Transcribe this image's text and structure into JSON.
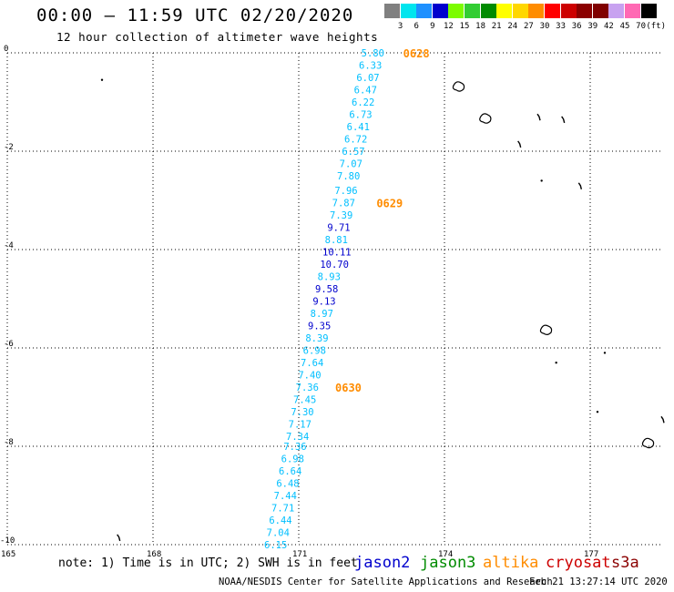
{
  "header": {
    "title": "00:00 – 11:59 UTC 02/20/2020",
    "subtitle": "12 hour collection of altimeter wave heights"
  },
  "colorbar": {
    "unit": "(ft)",
    "bins": [
      {
        "label": "3",
        "color": "#808080"
      },
      {
        "label": "6",
        "color": "#00e5ee"
      },
      {
        "label": "9",
        "color": "#1e90ff"
      },
      {
        "label": "12",
        "color": "#0000cd"
      },
      {
        "label": "15",
        "color": "#7cfc00"
      },
      {
        "label": "18",
        "color": "#32cd32"
      },
      {
        "label": "21",
        "color": "#008b00"
      },
      {
        "label": "24",
        "color": "#ffff00"
      },
      {
        "label": "27",
        "color": "#ffd700"
      },
      {
        "label": "30",
        "color": "#ff8c00"
      },
      {
        "label": "33",
        "color": "#ff0000"
      },
      {
        "label": "36",
        "color": "#cd0000"
      },
      {
        "label": "39",
        "color": "#8b0000"
      },
      {
        "label": "42",
        "color": "#800000"
      },
      {
        "label": "45",
        "color": "#c8a2f0"
      },
      {
        "label": "70",
        "color": "#ff69b4"
      },
      {
        "label": "",
        "color": "#000000"
      }
    ]
  },
  "map": {
    "lon_range": [
      165,
      178.5
    ],
    "lat_range": [
      -10,
      0
    ],
    "lon_ticks": [
      {
        "label": "165",
        "value": 165
      },
      {
        "label": "168",
        "value": 168
      },
      {
        "label": "171",
        "value": 171
      },
      {
        "label": "174",
        "value": 174
      },
      {
        "label": "177",
        "value": 177
      }
    ],
    "lat_ticks": [
      {
        "label": "0",
        "value": 0
      },
      {
        "label": "-2",
        "value": -2
      },
      {
        "label": "-4",
        "value": -4
      },
      {
        "label": "-6",
        "value": -6
      },
      {
        "label": "-8",
        "value": -8
      },
      {
        "label": "-10",
        "value": -10
      }
    ],
    "grid": true
  },
  "chart_data": {
    "type": "scatter",
    "xlabel": "",
    "ylabel": "",
    "xlim": [
      165,
      178.5
    ],
    "ylim": [
      -10,
      0
    ],
    "series": [
      {
        "name": "jason2",
        "points": [
          {
            "lon": 172.55,
            "lat": 0.0,
            "swh": "5.80",
            "color": "#00bfff"
          },
          {
            "lon": 172.5,
            "lat": -0.25,
            "swh": "6.33",
            "color": "#00bfff"
          },
          {
            "lon": 172.45,
            "lat": -0.5,
            "swh": "6.07",
            "color": "#00bfff"
          },
          {
            "lon": 172.4,
            "lat": -0.75,
            "swh": "6.47",
            "color": "#00bfff"
          },
          {
            "lon": 172.35,
            "lat": -1.0,
            "swh": "6.22",
            "color": "#00bfff"
          },
          {
            "lon": 172.3,
            "lat": -1.25,
            "swh": "6.73",
            "color": "#00bfff"
          },
          {
            "lon": 172.25,
            "lat": -1.5,
            "swh": "6.41",
            "color": "#00bfff"
          },
          {
            "lon": 172.2,
            "lat": -1.75,
            "swh": "6.72",
            "color": "#00bfff"
          },
          {
            "lon": 172.15,
            "lat": -2.0,
            "swh": "6.57",
            "color": "#00bfff"
          },
          {
            "lon": 172.1,
            "lat": -2.25,
            "swh": "7.07",
            "color": "#00bfff"
          },
          {
            "lon": 172.05,
            "lat": -2.5,
            "swh": "7.80",
            "color": "#00bfff"
          },
          {
            "lon": 172.0,
            "lat": -2.8,
            "swh": "7.96",
            "color": "#00bfff"
          },
          {
            "lon": 171.95,
            "lat": -3.05,
            "swh": "7.87",
            "color": "#00bfff"
          },
          {
            "lon": 171.9,
            "lat": -3.3,
            "swh": "7.39",
            "color": "#00bfff"
          },
          {
            "lon": 171.85,
            "lat": -3.55,
            "swh": "9.71",
            "color": "#0000cd"
          },
          {
            "lon": 171.8,
            "lat": -3.8,
            "swh": "8.81",
            "color": "#00bfff"
          },
          {
            "lon": 171.75,
            "lat": -4.05,
            "swh": "10.11",
            "color": "#0000cd"
          },
          {
            "lon": 171.7,
            "lat": -4.3,
            "swh": "10.70",
            "color": "#0000cd"
          },
          {
            "lon": 171.65,
            "lat": -4.55,
            "swh": "8.93",
            "color": "#00bfff"
          },
          {
            "lon": 171.6,
            "lat": -4.8,
            "swh": "9.58",
            "color": "#0000cd"
          },
          {
            "lon": 171.55,
            "lat": -5.05,
            "swh": "9.13",
            "color": "#0000cd"
          },
          {
            "lon": 171.5,
            "lat": -5.3,
            "swh": "8.97",
            "color": "#00bfff"
          },
          {
            "lon": 171.45,
            "lat": -5.55,
            "swh": "9.35",
            "color": "#0000cd"
          },
          {
            "lon": 171.4,
            "lat": -5.8,
            "swh": "8.39",
            "color": "#00bfff"
          },
          {
            "lon": 171.35,
            "lat": -6.05,
            "swh": "6.98",
            "color": "#00bfff"
          },
          {
            "lon": 171.3,
            "lat": -6.3,
            "swh": "7.64",
            "color": "#00bfff"
          },
          {
            "lon": 171.25,
            "lat": -6.55,
            "swh": "7.40",
            "color": "#00bfff"
          },
          {
            "lon": 171.2,
            "lat": -6.8,
            "swh": "7.36",
            "color": "#00bfff"
          },
          {
            "lon": 171.15,
            "lat": -7.05,
            "swh": "7.45",
            "color": "#00bfff"
          },
          {
            "lon": 171.1,
            "lat": -7.3,
            "swh": "7.30",
            "color": "#00bfff"
          },
          {
            "lon": 171.05,
            "lat": -7.55,
            "swh": "7.17",
            "color": "#00bfff"
          },
          {
            "lon": 171.0,
            "lat": -7.8,
            "swh": "7.34",
            "color": "#00bfff"
          },
          {
            "lon": 170.95,
            "lat": -8.0,
            "swh": "7.36",
            "color": "#00bfff"
          },
          {
            "lon": 170.9,
            "lat": -8.25,
            "swh": "6.98",
            "color": "#00bfff"
          },
          {
            "lon": 170.85,
            "lat": -8.5,
            "swh": "6.64",
            "color": "#00bfff"
          },
          {
            "lon": 170.8,
            "lat": -8.75,
            "swh": "6.48",
            "color": "#00bfff"
          },
          {
            "lon": 170.75,
            "lat": -9.0,
            "swh": "7.44",
            "color": "#00bfff"
          },
          {
            "lon": 170.7,
            "lat": -9.25,
            "swh": "7.71",
            "color": "#00bfff"
          },
          {
            "lon": 170.65,
            "lat": -9.5,
            "swh": "6.44",
            "color": "#00bfff"
          },
          {
            "lon": 170.6,
            "lat": -9.75,
            "swh": "7.04",
            "color": "#00bfff"
          },
          {
            "lon": 170.55,
            "lat": -10.0,
            "swh": "6.15",
            "color": "#00bfff"
          }
        ]
      }
    ],
    "time_labels": [
      {
        "label": "0628",
        "lon": 173.15,
        "lat": 0.0
      },
      {
        "label": "0629",
        "lon": 172.6,
        "lat": -3.05
      },
      {
        "label": "0630",
        "lon": 171.75,
        "lat": -6.8
      }
    ]
  },
  "islands": [
    {
      "name": "dot",
      "lon": 166.95,
      "lat": -0.55
    },
    {
      "name": "atoll",
      "lon": 174.3,
      "lat": -0.7
    },
    {
      "name": "atoll",
      "lon": 174.85,
      "lat": -1.35
    },
    {
      "name": "reef",
      "lon": 175.95,
      "lat": -1.3
    },
    {
      "name": "reef",
      "lon": 176.45,
      "lat": -1.35
    },
    {
      "name": "reef",
      "lon": 175.55,
      "lat": -1.85
    },
    {
      "name": "dot",
      "lon": 176.0,
      "lat": -2.6
    },
    {
      "name": "reef",
      "lon": 176.8,
      "lat": -2.7
    },
    {
      "name": "atoll",
      "lon": 176.1,
      "lat": -5.65
    },
    {
      "name": "dot",
      "lon": 176.3,
      "lat": -6.3
    },
    {
      "name": "dot",
      "lon": 177.3,
      "lat": -6.1
    },
    {
      "name": "dot",
      "lon": 177.15,
      "lat": -7.3
    },
    {
      "name": "reef",
      "lon": 178.5,
      "lat": -7.45
    },
    {
      "name": "atoll",
      "lon": 178.2,
      "lat": -7.95
    },
    {
      "name": "reef",
      "lon": 167.3,
      "lat": -9.85
    }
  ],
  "footer": {
    "note": "note: 1) Time is in UTC; 2) SWH is in feet",
    "satellites": [
      {
        "label": "jason2",
        "color": "#0000cd"
      },
      {
        "label": "jason3",
        "color": "#008b00"
      },
      {
        "label": "altika",
        "color": "#ff8c00"
      },
      {
        "label": "cryosat",
        "color": "#cd0000"
      },
      {
        "label": "s3a",
        "color": "#8b0000"
      }
    ],
    "credit": "NOAA/NESDIS Center for Satellite Applications and Research",
    "generated": "Feb 21 13:27:14 UTC 2020"
  }
}
